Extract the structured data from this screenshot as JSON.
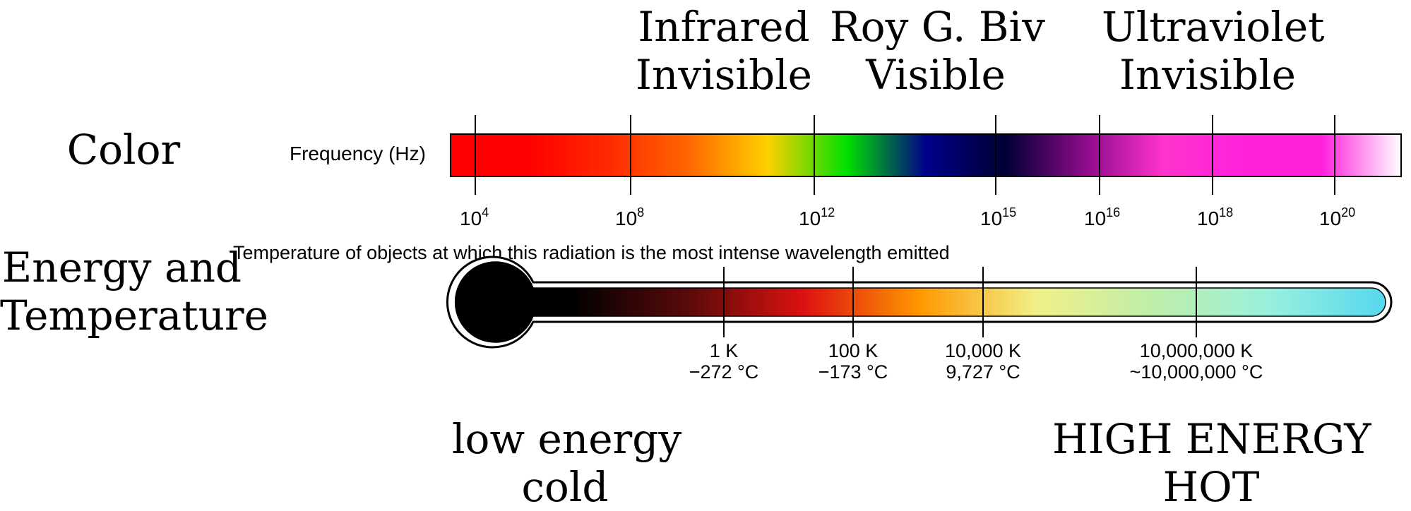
{
  "regions": [
    {
      "line1": "Infrared",
      "line2": "Invisible"
    },
    {
      "line1": "Roy G. Biv",
      "line2": "Visible"
    },
    {
      "line1": "Ultraviolet",
      "line2": "Invisible"
    }
  ],
  "rows": {
    "color": "Color",
    "energy_line1": "Energy and",
    "energy_line2": "Temperature"
  },
  "frequency": {
    "label": "Frequency (Hz)",
    "ticks": [
      {
        "base": "10",
        "exp": "4"
      },
      {
        "base": "10",
        "exp": "8"
      },
      {
        "base": "10",
        "exp": "12"
      },
      {
        "base": "10",
        "exp": "15"
      },
      {
        "base": "10",
        "exp": "16"
      },
      {
        "base": "10",
        "exp": "18"
      },
      {
        "base": "10",
        "exp": "20"
      }
    ]
  },
  "temperature": {
    "desc_lines": [
      "Temperature of",
      "objects at which",
      "this radiation is the",
      "most intense",
      "wavelength emitted"
    ],
    "ticks": [
      {
        "kelvin": "1 K",
        "celsius": "−272 °C"
      },
      {
        "kelvin": "100 K",
        "celsius": "−173 °C"
      },
      {
        "kelvin": "10,000 K",
        "celsius": "9,727 °C"
      },
      {
        "kelvin": "10,000,000 K",
        "celsius": "~10,000,000 °C"
      }
    ]
  },
  "energy": {
    "low_line1": "low energy",
    "low_line2": "cold",
    "high_line1": "HIGH ENERGY",
    "high_line2": "HOT"
  },
  "colors": {
    "spectrum": [
      "#ff0000",
      "#ff0000",
      "#ff2a00",
      "#ff6600",
      "#ffd000",
      "#00e000",
      "#00008a",
      "#000033",
      "#8a0a8a",
      "#ff33cc",
      "#ff22dd",
      "#ff22dd",
      "#ffffff"
    ],
    "thermometer": [
      "#000000",
      "#000000",
      "#5a0a0a",
      "#dd1111",
      "#ff9900",
      "#f0f088",
      "#bfeeaa",
      "#99f0dd",
      "#55d8ee"
    ]
  }
}
